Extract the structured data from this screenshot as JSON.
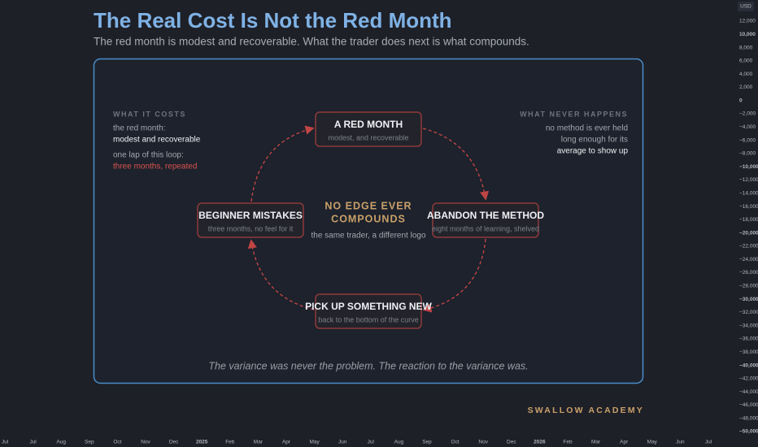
{
  "header": {
    "title": "The Real Cost Is Not the Red Month",
    "subtitle": "The red month is modest and recoverable. What the trader does next is what compounds."
  },
  "panel": {
    "left": {
      "heading": "WHAT IT COSTS",
      "lines": [
        "the red month:",
        "modest and recoverable",
        "one lap of this loop:",
        "three months, repeated"
      ]
    },
    "right": {
      "heading": "WHAT NEVER HAPPENS",
      "lines": [
        "no method is ever held",
        "long enough for its",
        "average to show up"
      ]
    },
    "center": {
      "heading": [
        "NO EDGE EVER",
        "COMPOUNDS"
      ],
      "caption": "the same trader, a different logo"
    },
    "nodes": [
      {
        "label": "A RED MONTH",
        "sublabel": "modest, and recoverable"
      },
      {
        "label": "ABANDON THE METHOD",
        "sublabel": "eight months of learning, shelved"
      },
      {
        "label": "PICK UP SOMETHING NEW",
        "sublabel": "back to the bottom of the curve"
      },
      {
        "label": "BEGINNER MISTAKES",
        "sublabel": "three months, no feel for it"
      }
    ],
    "footer": "The variance was never the problem. The reaction to the variance was."
  },
  "brand": "SWALLOW ACADEMY",
  "price_axis": {
    "currency": "USD",
    "labels": [
      "12,000",
      "10,000",
      "8,000",
      "6,000",
      "4,000",
      "2,000",
      "0",
      "−2,000",
      "−4,000",
      "−6,000",
      "−8,000",
      "−10,000",
      "−12,000",
      "−14,000",
      "−16,000",
      "−18,000",
      "−20,000",
      "−22,000",
      "−24,000",
      "−26,000",
      "−28,000",
      "−30,000",
      "−32,000",
      "−34,000",
      "−36,000",
      "−38,000",
      "−40,000",
      "−42,000",
      "−44,000",
      "−46,000",
      "−48,000",
      "−50,000"
    ]
  },
  "time_axis": {
    "labels": [
      "Jul",
      "Jul",
      "Aug",
      "Sep",
      "Oct",
      "Nov",
      "Dec",
      "2025",
      "Feb",
      "Mar",
      "Apr",
      "May",
      "Jun",
      "Jul",
      "Aug",
      "Sep",
      "Oct",
      "Nov",
      "Dec",
      "2026",
      "Feb",
      "Mar",
      "Apr",
      "May",
      "Jun",
      "Jul"
    ]
  }
}
